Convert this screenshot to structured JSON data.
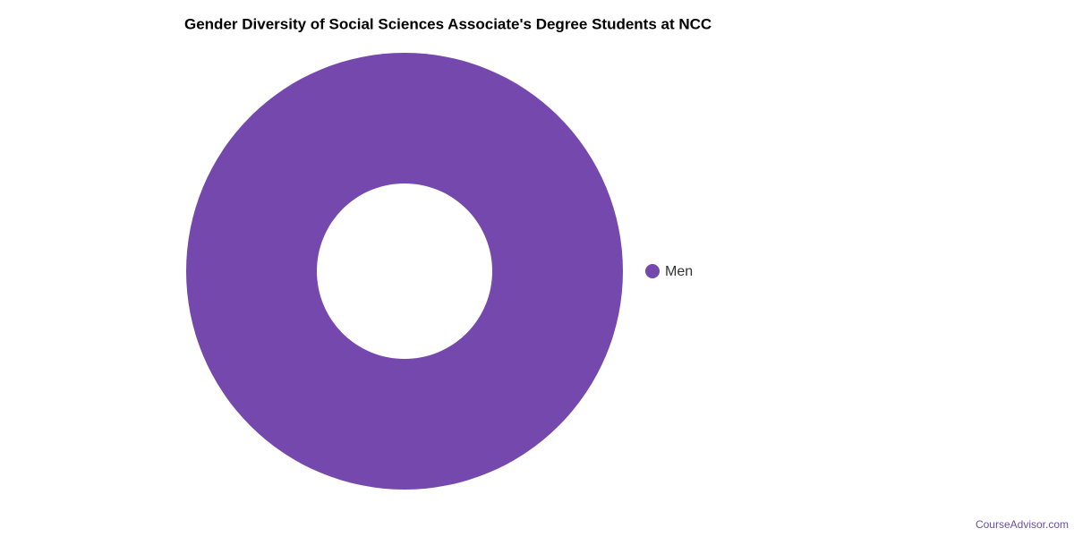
{
  "chart_data": {
    "type": "donut",
    "title": "Gender Diversity of Social Sciences Associate's Degree Students at NCC",
    "categories": [
      "Men"
    ],
    "values": [
      100
    ],
    "colors": [
      "#7448ad"
    ],
    "legend": "right",
    "source": "CourseAdvisor.com"
  }
}
